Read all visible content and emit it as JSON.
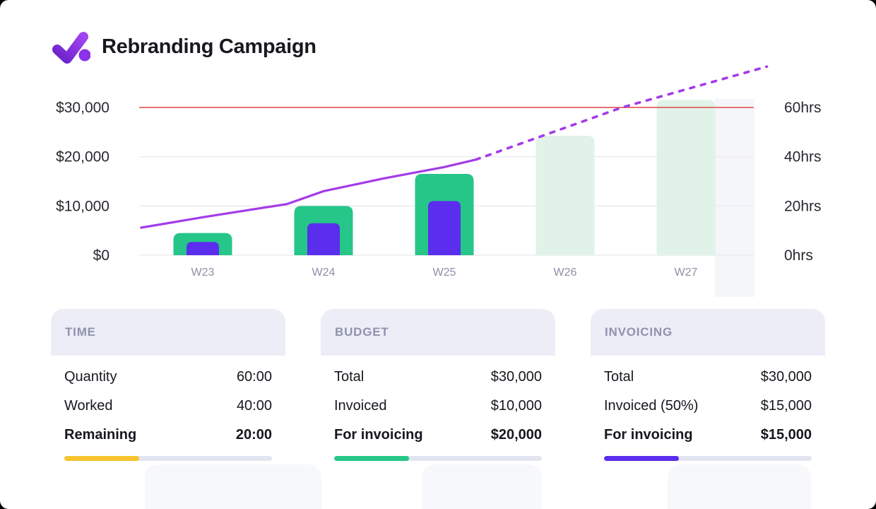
{
  "header": {
    "title": "Rebranding Campaign",
    "logo": "check-dot-logo",
    "logo_colors": {
      "gradient_start": "#6b21c8",
      "gradient_end": "#a144f2",
      "dot": "#8a33e8"
    }
  },
  "chart_data": {
    "type": "bar",
    "title": "Rebranding Campaign hours and budget by week",
    "categories": [
      "W23",
      "W24",
      "W25",
      "W26",
      "W27"
    ],
    "series": [
      {
        "name": "hours-total",
        "unit": "hrs",
        "values": [
          9,
          20,
          33,
          48.5,
          63
        ],
        "forecast": [
          false,
          false,
          false,
          true,
          true
        ]
      },
      {
        "name": "hours-worked",
        "unit": "hrs",
        "values": [
          5.4,
          13,
          22,
          null,
          null
        ],
        "forecast": [
          false,
          false,
          false,
          false,
          false
        ]
      }
    ],
    "line_series": {
      "name": "budget-spend-projection",
      "unit": "USD",
      "solid_points": [
        [
          -0.51,
          5600
        ],
        [
          0,
          7700
        ],
        [
          0.7,
          10400
        ],
        [
          1,
          13000
        ],
        [
          1.5,
          15600
        ],
        [
          2,
          17900
        ],
        [
          2.26,
          19400
        ]
      ],
      "dashed_points": [
        [
          2.26,
          19400
        ],
        [
          3.47,
          30000
        ],
        [
          4.67,
          38300
        ]
      ]
    },
    "threshold": {
      "value_usd": 30000,
      "value_hrs": 60
    },
    "left_axis": {
      "max": 30000,
      "ticks": [
        {
          "label": "$30,000",
          "value": 30000
        },
        {
          "label": "$20,000",
          "value": 20000
        },
        {
          "label": "$10,000",
          "value": 10000
        },
        {
          "label": "$0",
          "value": 0
        }
      ]
    },
    "right_axis": {
      "max": 60,
      "ticks": [
        {
          "label": "60hrs",
          "value": 60
        },
        {
          "label": "40hrs",
          "value": 40
        },
        {
          "label": "20hrs",
          "value": 20
        },
        {
          "label": "0hrs",
          "value": 0
        }
      ]
    },
    "legend_position": "none",
    "grid": true,
    "colors": {
      "actual": "#26c689",
      "forecast": "#e1f3e9",
      "worked": "#5b2ded",
      "line": "#a43be8",
      "threshold": "#e06161",
      "grid": "#ececf3",
      "axis_text": "#28282f",
      "category_text": "#8d90a6"
    }
  },
  "cards": [
    {
      "title": "TIME",
      "rows": [
        {
          "label": "Quantity",
          "value": "60:00"
        },
        {
          "label": "Worked",
          "value": "40:00"
        },
        {
          "label": "Remaining",
          "value": "20:00"
        }
      ],
      "progress": {
        "percent": 36,
        "color": "#f6c42d"
      }
    },
    {
      "title": "BUDGET",
      "rows": [
        {
          "label": "Total",
          "value": "$30,000"
        },
        {
          "label": "Invoiced",
          "value": "$10,000"
        },
        {
          "label": "For invoicing",
          "value": "$20,000"
        }
      ],
      "progress": {
        "percent": 36,
        "color": "#26c689"
      }
    },
    {
      "title": "INVOICING",
      "rows": [
        {
          "label": "Total",
          "value": "$30,000"
        },
        {
          "label": "Invoiced (50%)",
          "value": "$15,000"
        },
        {
          "label": "For invoicing",
          "value": "$15,000"
        }
      ],
      "progress": {
        "percent": 36,
        "color": "#5b2ded"
      }
    }
  ]
}
